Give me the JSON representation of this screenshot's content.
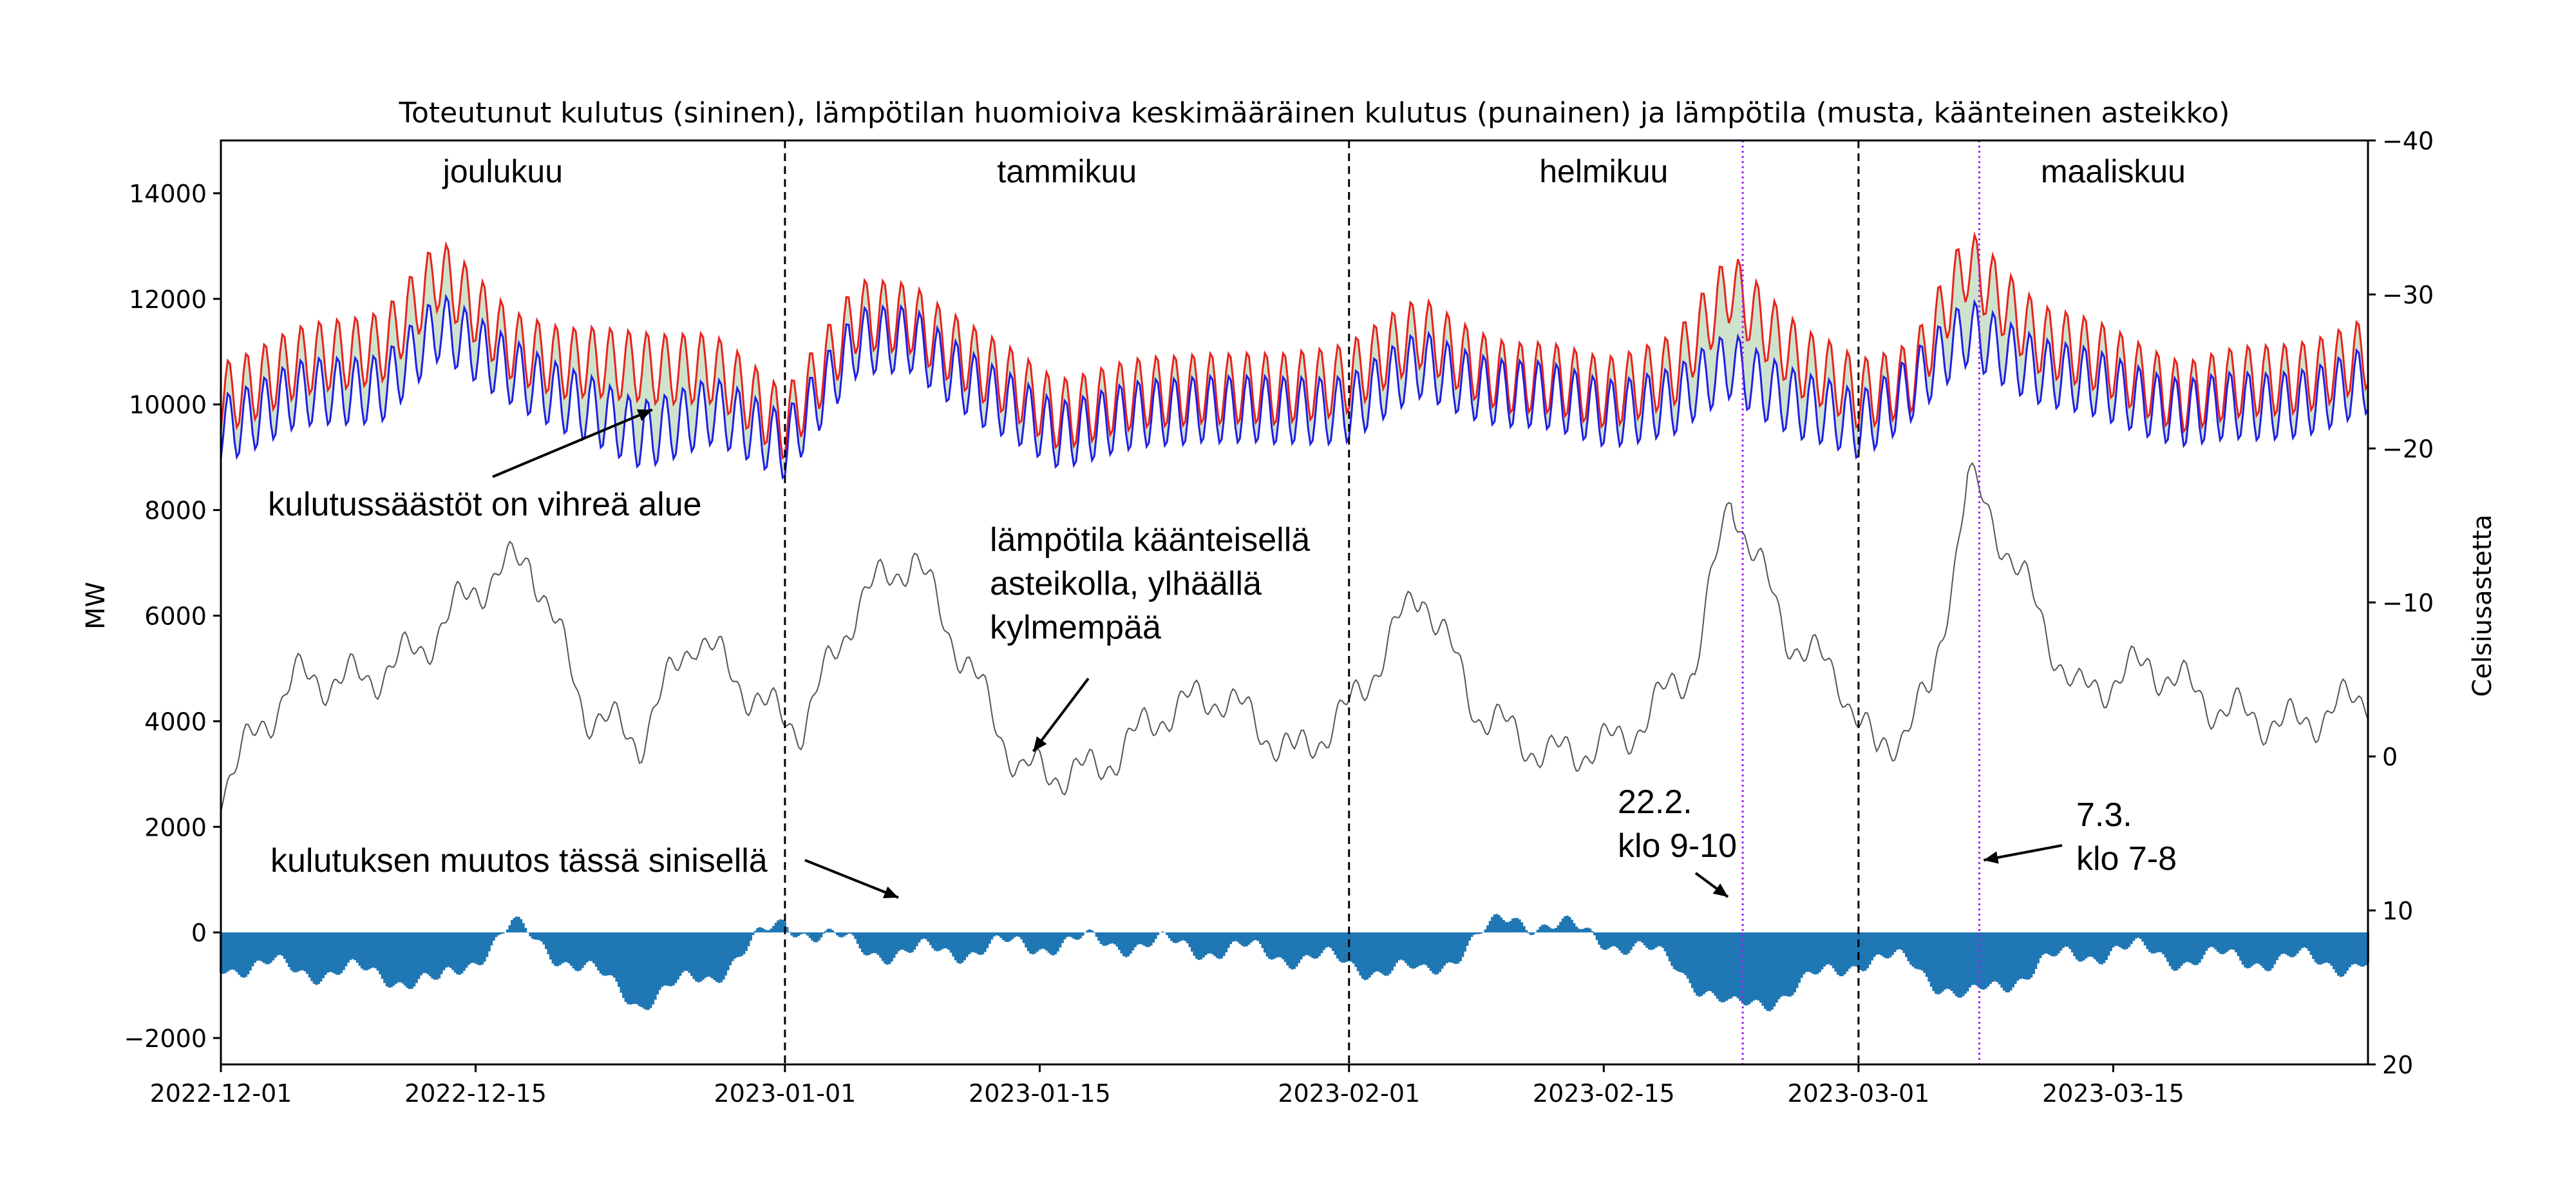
{
  "chart_data": {
    "type": "line",
    "title": "Toteutunut kulutus (sininen), lämpötilan huomioiva keskimääräinen kulutus (punainen) ja lämpötila (musta, käänteinen asteikko)",
    "ylabel": "MW",
    "y2label": "Celsiusastetta",
    "ylim": [
      -2500,
      15000
    ],
    "y2lim": [
      20,
      -40
    ],
    "y2_inverted": true,
    "xlim": [
      "2022-12-01",
      "2023-03-29"
    ],
    "grid": false,
    "yticks": [
      "−2000",
      "0",
      "2000",
      "4000",
      "6000",
      "8000",
      "10000",
      "12000",
      "14000"
    ],
    "y2ticks": [
      "20",
      "10",
      "0",
      "−10",
      "−20",
      "−30",
      "−40"
    ],
    "xticks": [
      "2022-12-01",
      "2022-12-15",
      "2023-01-01",
      "2023-01-15",
      "2023-02-01",
      "2023-02-15",
      "2023-03-01",
      "2023-03-15"
    ],
    "month_labels": [
      "joulukuu",
      "tammikuu",
      "helmikuu",
      "maaliskuu"
    ],
    "month_boundaries": [
      "2023-01-01",
      "2023-02-01",
      "2023-03-01"
    ],
    "highlight_dates": [
      "2023-02-22",
      "2023-03-07"
    ],
    "colors": {
      "actual": "#1f1fe6",
      "expected": "#e8231c",
      "temperature": "#555555",
      "savings_fill": "#cfe3cc",
      "change_bars": "#1f77b4",
      "highlight": "#a020f0"
    },
    "series": [
      {
        "name": "Toteutunut kulutus",
        "axis": "left",
        "x": [
          "2022-12-01",
          "2022-12-05",
          "2022-12-10",
          "2022-12-13",
          "2022-12-17",
          "2022-12-20",
          "2022-12-24",
          "2022-12-28",
          "2023-01-01",
          "2023-01-05",
          "2023-01-08",
          "2023-01-12",
          "2023-01-16",
          "2023-01-20",
          "2023-01-24",
          "2023-01-28",
          "2023-02-01",
          "2023-02-05",
          "2023-02-10",
          "2023-02-15",
          "2023-02-19",
          "2023-02-22",
          "2023-02-26",
          "2023-03-01",
          "2023-03-04",
          "2023-03-07",
          "2023-03-11",
          "2023-03-15",
          "2023-03-19",
          "2023-03-23",
          "2023-03-29"
        ],
        "values": [
          9600,
          10100,
          10400,
          11400,
          10700,
          10000,
          9500,
          9800,
          9300,
          11100,
          11300,
          10100,
          9500,
          9700,
          10000,
          9800,
          10000,
          10700,
          10200,
          9900,
          10000,
          10800,
          9900,
          9600,
          10400,
          11300,
          10700,
          10200,
          9900,
          9900,
          10400
        ]
      },
      {
        "name": "Lämpötilan huomioiva keskimääräinen kulutus",
        "axis": "left",
        "x": [
          "2022-12-01",
          "2022-12-05",
          "2022-12-10",
          "2022-12-13",
          "2022-12-17",
          "2022-12-20",
          "2022-12-24",
          "2022-12-28",
          "2023-01-01",
          "2023-01-05",
          "2023-01-08",
          "2023-01-12",
          "2023-01-16",
          "2023-01-20",
          "2023-01-24",
          "2023-01-28",
          "2023-02-01",
          "2023-02-05",
          "2023-02-10",
          "2023-02-15",
          "2023-02-19",
          "2023-02-22",
          "2023-02-26",
          "2023-03-01",
          "2023-03-04",
          "2023-03-07",
          "2023-03-11",
          "2023-03-15",
          "2023-03-19",
          "2023-03-23",
          "2023-03-29"
        ],
        "values": [
          10200,
          10700,
          11200,
          12400,
          11200,
          10700,
          10800,
          10600,
          9700,
          11600,
          11700,
          10600,
          9900,
          10100,
          10400,
          10200,
          10600,
          11300,
          10500,
          10300,
          10600,
          12300,
          10700,
          10200,
          10600,
          12600,
          11300,
          10700,
          10200,
          10400,
          10900
        ]
      },
      {
        "name": "Lämpötila",
        "axis": "right",
        "x": [
          "2022-12-01",
          "2022-12-05",
          "2022-12-09",
          "2022-12-12",
          "2022-12-15",
          "2022-12-18",
          "2022-12-21",
          "2022-12-24",
          "2022-12-27",
          "2022-12-31",
          "2023-01-02",
          "2023-01-05",
          "2023-01-08",
          "2023-01-11",
          "2023-01-14",
          "2023-01-18",
          "2023-01-22",
          "2023-01-25",
          "2023-01-29",
          "2023-02-01",
          "2023-02-05",
          "2023-02-08",
          "2023-02-12",
          "2023-02-16",
          "2023-02-20",
          "2023-02-22",
          "2023-02-25",
          "2023-02-28",
          "2023-03-02",
          "2023-03-05",
          "2023-03-07",
          "2023-03-09",
          "2023-03-13",
          "2023-03-17",
          "2023-03-21",
          "2023-03-25",
          "2023-03-29"
        ],
        "values": [
          2,
          -5,
          -5,
          -7,
          -11,
          -13,
          -3,
          -1,
          -8,
          -3,
          -2,
          -10,
          -13,
          -6,
          1,
          1,
          -3,
          -4,
          0,
          -3,
          -11,
          -3,
          0,
          -1,
          -6,
          -17,
          -8,
          -5,
          0,
          -4,
          -18,
          -14,
          -4,
          -6,
          -3,
          -2,
          -4
        ]
      },
      {
        "name": "Kulutuksen muutos",
        "type": "bar",
        "axis": "left",
        "x": [
          "2022-12-01",
          "2022-12-05",
          "2022-12-10",
          "2022-12-13",
          "2022-12-17",
          "2022-12-20",
          "2022-12-24",
          "2022-12-28",
          "2023-01-01",
          "2023-01-05",
          "2023-01-08",
          "2023-01-12",
          "2023-01-16",
          "2023-01-20",
          "2023-01-24",
          "2023-01-28",
          "2023-02-01",
          "2023-02-05",
          "2023-02-10",
          "2023-02-15",
          "2023-02-19",
          "2023-02-22",
          "2023-02-26",
          "2023-03-01",
          "2023-03-04",
          "2023-03-07",
          "2023-03-11",
          "2023-03-15",
          "2023-03-19",
          "2023-03-23",
          "2023-03-29"
        ],
        "values": [
          -600,
          -700,
          -800,
          -1000,
          100,
          -500,
          -1300,
          -800,
          200,
          -300,
          -400,
          -300,
          -200,
          -200,
          -300,
          -400,
          -600,
          -800,
          300,
          -100,
          -600,
          -1500,
          -1000,
          -500,
          -600,
          -1300,
          -600,
          -300,
          -500,
          -500,
          -600
        ]
      }
    ],
    "annotations": [
      {
        "text": "kulutussäästöt on vihreä alue",
        "x": "2022-12-24",
        "y": 9900
      },
      {
        "text": "lämpötila käänteisellä asteikolla, ylhäällä kylmempää",
        "x": "2023-01-15",
        "y": 3300
      },
      {
        "text": "kulutuksen muutos tässä sinisellä",
        "x": "2023-01-05",
        "y": 600
      },
      {
        "text": "22.2. klo 9-10",
        "x": "2023-02-22",
        "y": 500
      },
      {
        "text": "7.3. klo 7-8",
        "x": "2023-03-07",
        "y": 1300
      }
    ]
  },
  "annotation_lines": {
    "savings": [
      "kulutussäästöt on vihreä alue"
    ],
    "temperature": [
      "lämpötila käänteisellä",
      "asteikolla, ylhäällä",
      "kylmempää"
    ],
    "change": [
      "kulutuksen muutos tässä sinisellä"
    ],
    "hl1": [
      "22.2.",
      "klo 9-10"
    ],
    "hl2": [
      "7.3.",
      "klo 7-8"
    ]
  }
}
